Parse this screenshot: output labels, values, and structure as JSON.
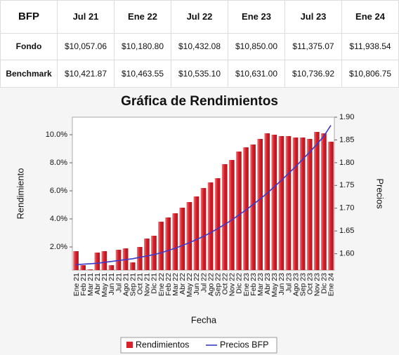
{
  "table": {
    "header": [
      "BFP",
      "Jul 21",
      "Ene 22",
      "Jul 22",
      "Ene 23",
      "Jul 23",
      "Ene 24"
    ],
    "rows": [
      [
        "Fondo",
        "$10,057.06",
        "$10,180.80",
        "$10,432.08",
        "$10,850.00",
        "$11,375.07",
        "$11,938.54"
      ],
      [
        "Benchmark",
        "$10,421.87",
        "$10,463.55",
        "$10,535.10",
        "$10,631.00",
        "$10,736.92",
        "$10,806.75"
      ]
    ]
  },
  "chart_data": {
    "type": "bar",
    "title": "Gráfica de Rendimientos",
    "x_label": "Fecha",
    "y_label": "Rendimiento",
    "y2_label": "Precios",
    "categories": [
      "Ene 21",
      "Feb 21",
      "Mar 21",
      "Abr 21",
      "May 21",
      "Jun 21",
      "Jul 21",
      "Ago 21",
      "Sep 21",
      "Oct 21",
      "Nov 21",
      "Dic 21",
      "Ene 22",
      "Feb 22",
      "Mar 22",
      "Abr 22",
      "May 22",
      "Jun 22",
      "Jul 22",
      "Ago 22",
      "Sep 22",
      "Oct 22",
      "Nov 22",
      "Dic 22",
      "Ene 23",
      "Feb 23",
      "Mar 23",
      "Abr 23",
      "May 23",
      "Jun 23",
      "Jul 23",
      "Ago 23",
      "Sep 23",
      "Oct 23",
      "Nov 23",
      "Dic 23",
      "Ene 24"
    ],
    "series": [
      {
        "name": "Rendimientos",
        "type": "bar",
        "color": "#d9212b",
        "values": [
          1.7,
          0.7,
          0.4,
          1.6,
          1.7,
          0.7,
          1.8,
          1.9,
          0.9,
          2.0,
          2.6,
          2.8,
          3.8,
          4.1,
          4.4,
          4.8,
          5.2,
          5.6,
          6.2,
          6.6,
          6.9,
          7.9,
          8.2,
          8.8,
          9.1,
          9.3,
          9.7,
          10.1,
          10.0,
          9.9,
          9.9,
          9.8,
          9.8,
          9.7,
          10.2,
          10.1,
          9.5
        ]
      },
      {
        "name": "Precios BFP",
        "type": "line",
        "axis": "y2",
        "color": "#3a3acc",
        "values": [
          1.576,
          1.577,
          1.578,
          1.579,
          1.581,
          1.583,
          1.585,
          1.587,
          1.589,
          1.592,
          1.595,
          1.598,
          1.602,
          1.607,
          1.612,
          1.618,
          1.624,
          1.631,
          1.638,
          1.646,
          1.655,
          1.664,
          1.674,
          1.685,
          1.696,
          1.708,
          1.72,
          1.733,
          1.747,
          1.761,
          1.776,
          1.791,
          1.807,
          1.823,
          1.84,
          1.858,
          1.882
        ]
      }
    ],
    "ylim": [
      0.35,
      11.25
    ],
    "yticks": [
      {
        "value": 2,
        "label": "2.0%"
      },
      {
        "value": 4,
        "label": "4.0%"
      },
      {
        "value": 6,
        "label": "6.0%"
      },
      {
        "value": 8,
        "label": "8.0%"
      },
      {
        "value": 10,
        "label": "10.0%"
      }
    ],
    "y2lim": [
      1.564,
      1.9
    ],
    "y2ticks": [
      {
        "value": 1.6,
        "label": "1.60"
      },
      1.65,
      {
        "value": 1.7,
        "label": "1.70"
      },
      1.75,
      {
        "value": 1.8,
        "label": "1.80"
      },
      1.85,
      {
        "value": 1.9,
        "label": "1.90"
      }
    ],
    "legend": "bottom"
  }
}
